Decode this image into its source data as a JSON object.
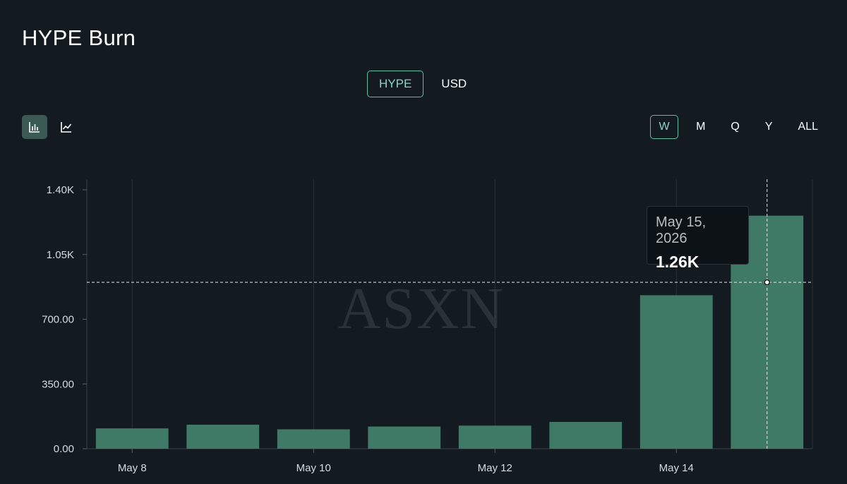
{
  "title": "HYPE Burn",
  "unit_toggle": {
    "options": [
      "HYPE",
      "USD"
    ],
    "selected": "HYPE"
  },
  "chart_type_toggle": {
    "options": [
      "bar-chart-icon",
      "line-chart-icon"
    ],
    "selected": "bar-chart-icon"
  },
  "range_toggle": {
    "options": [
      "W",
      "M",
      "Q",
      "Y",
      "ALL"
    ],
    "selected": "W"
  },
  "watermark": "ASXN",
  "tooltip": {
    "date": "May 15, 2026",
    "value": "1.26K"
  },
  "colors": {
    "bar": "#3f7a66",
    "accent": "#5fbfa6",
    "background": "#131b21"
  },
  "chart_data": {
    "type": "bar",
    "title": "HYPE Burn",
    "xlabel": "",
    "ylabel": "",
    "x": [
      "2026-05-08",
      "2026-05-09",
      "2026-05-10",
      "2026-05-11",
      "2026-05-12",
      "2026-05-13",
      "2026-05-14",
      "2026-05-15"
    ],
    "values": [
      110,
      130,
      105,
      120,
      125,
      145,
      830,
      1260
    ],
    "x_tick_labels": [
      {
        "x": "2026-05-08",
        "label": "May 8"
      },
      {
        "x": "2026-05-10",
        "label": "May 10"
      },
      {
        "x": "2026-05-12",
        "label": "May 12"
      },
      {
        "x": "2026-05-14",
        "label": "May 14"
      }
    ],
    "y_ticks": [
      0,
      350,
      700,
      1050,
      1400
    ],
    "y_tick_labels": [
      "0.00",
      "350.00",
      "700.00",
      "1.05K",
      "1.40K"
    ],
    "ylim": [
      0,
      1400
    ],
    "grid": "vertical",
    "highlighted_point": {
      "x": "2026-05-15",
      "y": 1260
    },
    "crosshair_y": 900
  }
}
